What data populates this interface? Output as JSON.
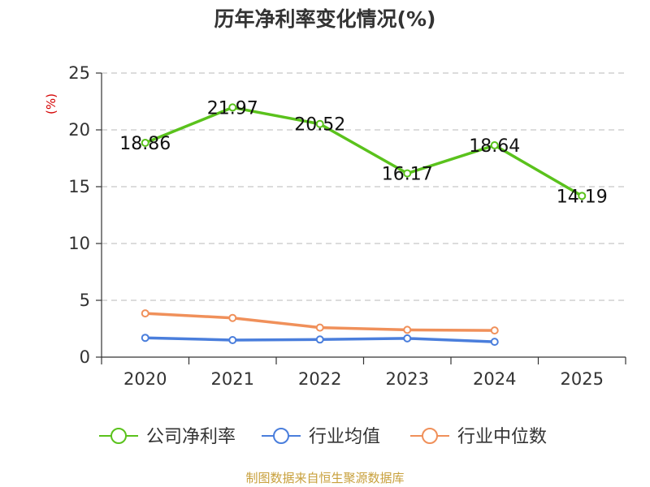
{
  "chart_data": {
    "type": "line",
    "title": "历年净利率变化情况(%)",
    "ylabel": "(%)",
    "xlabel": "",
    "categories": [
      "2020",
      "2021",
      "2022",
      "2023",
      "2024",
      "2025"
    ],
    "ylim": [
      0,
      25
    ],
    "yticks": [
      0,
      5,
      10,
      15,
      20,
      25
    ],
    "grid": true,
    "legend_position": "bottom",
    "series": [
      {
        "name": "公司净利率",
        "color": "#5ac21c",
        "show_labels": true,
        "values": [
          18.86,
          21.97,
          20.52,
          16.17,
          18.64,
          14.19
        ],
        "labels": [
          "18.86",
          "21.97",
          "20.52",
          "16.17",
          "18.64",
          "14.19"
        ]
      },
      {
        "name": "行业均值",
        "color": "#4a7edc",
        "show_labels": false,
        "values": [
          1.7,
          1.5,
          1.55,
          1.65,
          1.35,
          null
        ]
      },
      {
        "name": "行业中位数",
        "color": "#f0905a",
        "show_labels": false,
        "values": [
          3.85,
          3.45,
          2.6,
          2.4,
          2.35,
          null
        ]
      }
    ]
  },
  "source": "制图数据来自恒生聚源数据库"
}
